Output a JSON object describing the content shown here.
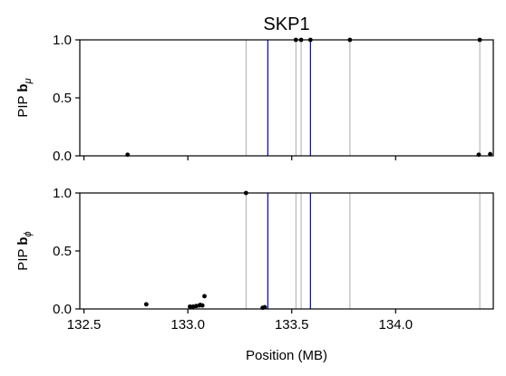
{
  "chart_data": {
    "title": "SKP1",
    "type": "scatter",
    "xlabel": "Position (MB)",
    "xlim": [
      132.48,
      134.47
    ],
    "x_ticks": [
      "132.5",
      "133.0",
      "133.5",
      "134.0"
    ],
    "x_tick_values": [
      132.5,
      133.0,
      133.5,
      134.0
    ],
    "gene_region": [
      133.385,
      133.59
    ],
    "gene_region_color": "#0000cc",
    "grid_lines": [
      133.28,
      133.52,
      133.545,
      133.78,
      134.405
    ],
    "grid_line_color": "#aaaaaa",
    "point_color": "#000000",
    "panels": [
      {
        "ylabel_prefix": "PIP",
        "ylabel_symbol": "b",
        "ylabel_sub": "μ",
        "ylim": [
          0,
          1
        ],
        "y_ticks": [
          "0.0",
          "0.5",
          "1.0"
        ],
        "y_tick_values": [
          0,
          0.5,
          1
        ],
        "points": [
          {
            "x": 132.71,
            "y": 0.01
          },
          {
            "x": 133.52,
            "y": 1.0
          },
          {
            "x": 133.545,
            "y": 1.0
          },
          {
            "x": 133.59,
            "y": 1.0
          },
          {
            "x": 133.78,
            "y": 1.0
          },
          {
            "x": 134.405,
            "y": 1.0
          },
          {
            "x": 134.4,
            "y": 0.01
          },
          {
            "x": 134.455,
            "y": 0.015
          }
        ]
      },
      {
        "ylabel_prefix": "PIP",
        "ylabel_symbol": "b",
        "ylabel_sub": "ϕ",
        "ylim": [
          0,
          1
        ],
        "y_ticks": [
          "0.0",
          "0.5",
          "1.0"
        ],
        "y_tick_values": [
          0,
          0.5,
          1
        ],
        "points": [
          {
            "x": 132.8,
            "y": 0.04
          },
          {
            "x": 133.01,
            "y": 0.02
          },
          {
            "x": 133.025,
            "y": 0.02
          },
          {
            "x": 133.04,
            "y": 0.025
          },
          {
            "x": 133.055,
            "y": 0.03
          },
          {
            "x": 133.06,
            "y": 0.035
          },
          {
            "x": 133.07,
            "y": 0.03
          },
          {
            "x": 133.08,
            "y": 0.11
          },
          {
            "x": 133.28,
            "y": 1.0
          },
          {
            "x": 133.36,
            "y": 0.01
          },
          {
            "x": 133.37,
            "y": 0.015
          }
        ]
      }
    ]
  }
}
